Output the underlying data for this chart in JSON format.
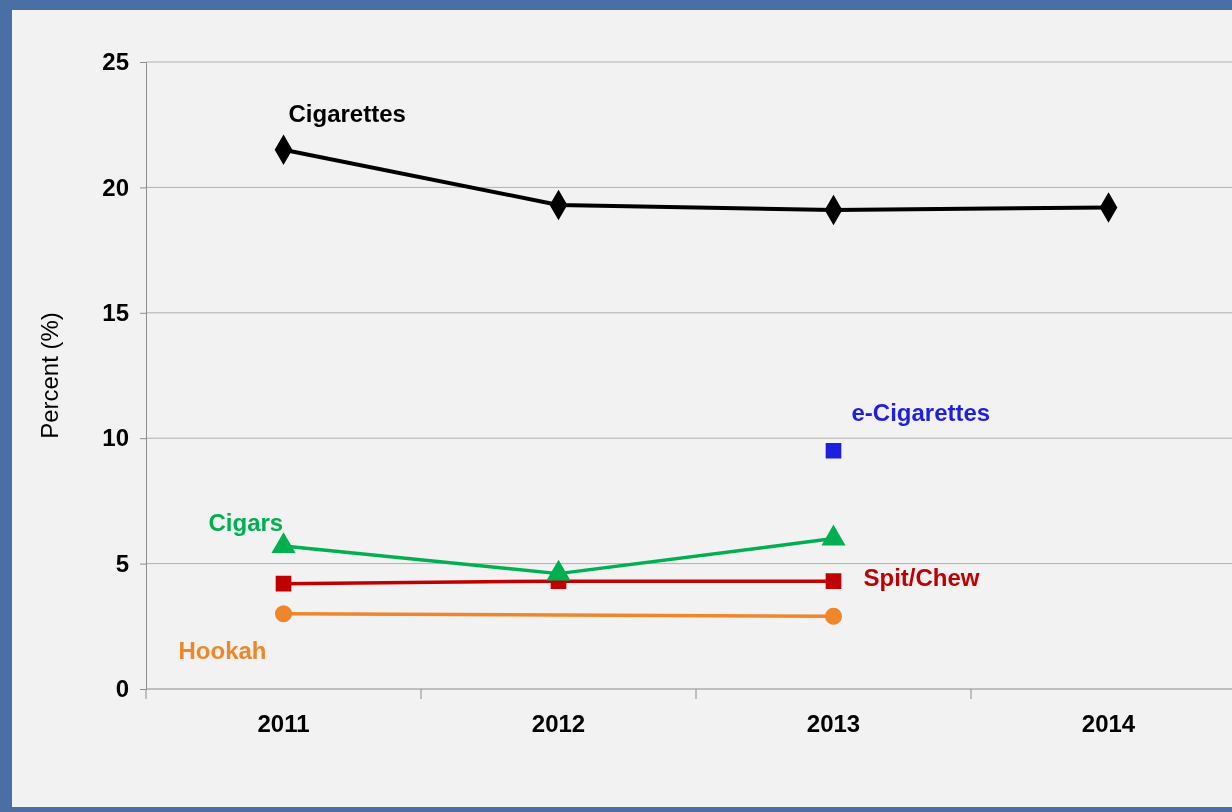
{
  "chart_data": {
    "type": "line",
    "ylabel": "Percent (%)",
    "categories": [
      "2011",
      "2012",
      "2013",
      "2014"
    ],
    "series": [
      {
        "name": "Cigarettes",
        "color": "#000000",
        "marker": "diamond",
        "values": [
          21.5,
          19.3,
          19.1,
          19.2
        ]
      },
      {
        "name": "e-Cigarettes",
        "color": "#1f1fe0",
        "marker": "square",
        "values": [
          null,
          null,
          9.5,
          null
        ]
      },
      {
        "name": "Cigars",
        "color": "#00b050",
        "marker": "triangle",
        "values": [
          5.7,
          4.6,
          6.0,
          null
        ]
      },
      {
        "name": "Spit/Chew",
        "color": "#c00000",
        "marker": "square",
        "values": [
          4.2,
          4.3,
          4.3,
          null
        ]
      },
      {
        "name": "Hookah",
        "color": "#f0862a",
        "marker": "circle",
        "values": [
          3.0,
          null,
          2.9,
          null
        ]
      }
    ],
    "ylim": [
      0,
      25
    ],
    "yticks": [
      0,
      5,
      10,
      15,
      20,
      25
    ],
    "grid": "y"
  }
}
